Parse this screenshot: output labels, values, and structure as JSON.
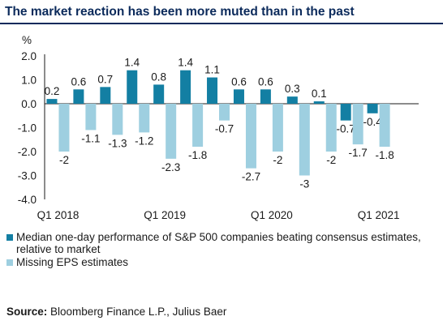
{
  "title": "The market reaction has been more muted than in the past",
  "source_label": "Source:",
  "source_text": "Bloomberg Finance L.P., Julius Baer",
  "colors": {
    "title": "#0b2a5b",
    "beat": "#137fa3",
    "miss": "#9ecfe0"
  },
  "chart_data": {
    "type": "bar",
    "ylabel": "%",
    "ylim": [
      -4.0,
      2.0
    ],
    "yticks": [
      "2.0",
      "1.0",
      "0.0",
      "-1.0",
      "-2.0",
      "-3.0",
      "-4.0"
    ],
    "categories": [
      "Q1 2018",
      "Q2 2018",
      "Q3 2018",
      "Q4 2018",
      "Q1 2019",
      "Q2 2019",
      "Q3 2019",
      "Q4 2019",
      "Q1 2020",
      "Q2 2020",
      "Q3 2020",
      "Q4 2020",
      "Q1 2021",
      "Q2 2021"
    ],
    "x_tick_labels": {
      "0": "Q1 2018",
      "4": "Q1 2019",
      "8": "Q1 2020",
      "12": "Q1 2021"
    },
    "series": [
      {
        "name": "Median one-day performance of S&P 500 companies beating consensus estimates, relative to market",
        "values": [
          0.2,
          0.6,
          0.7,
          1.4,
          0.8,
          1.4,
          1.1,
          0.6,
          0.6,
          0.3,
          0.1,
          -0.7,
          -0.4,
          null
        ]
      },
      {
        "name": "Missing EPS estimates",
        "values": [
          -2,
          -1.1,
          -1.3,
          -1.2,
          -2.3,
          -1.8,
          -0.7,
          -2.7,
          -2,
          -3,
          -2,
          -1.7,
          -1.8,
          null
        ]
      }
    ],
    "grid": false,
    "legend_position": "bottom"
  }
}
